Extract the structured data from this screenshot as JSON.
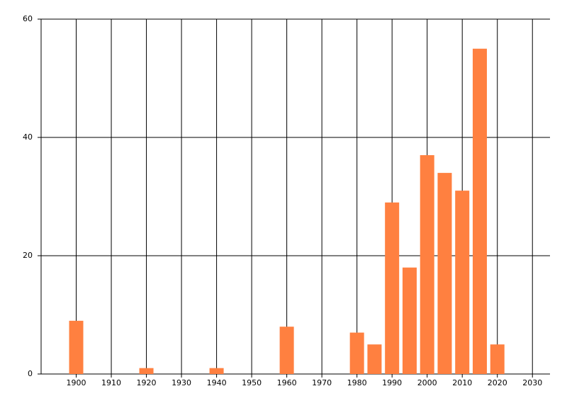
{
  "chart_data": {
    "type": "bar",
    "x": [
      1900,
      1920,
      1940,
      1960,
      1980,
      1985,
      1990,
      1995,
      2000,
      2005,
      2010,
      2015,
      2020
    ],
    "values": [
      9,
      1,
      1,
      8,
      7,
      5,
      29,
      18,
      37,
      34,
      31,
      55,
      5
    ],
    "color": "#ff8040",
    "xlim": [
      1890,
      2035
    ],
    "xticks": [
      1900,
      1910,
      1920,
      1930,
      1940,
      1950,
      1960,
      1970,
      1980,
      1990,
      2000,
      2010,
      2020,
      2030
    ],
    "ylim": [
      0,
      60
    ],
    "yticks": [
      0,
      20,
      40,
      60
    ],
    "grid": true
  }
}
